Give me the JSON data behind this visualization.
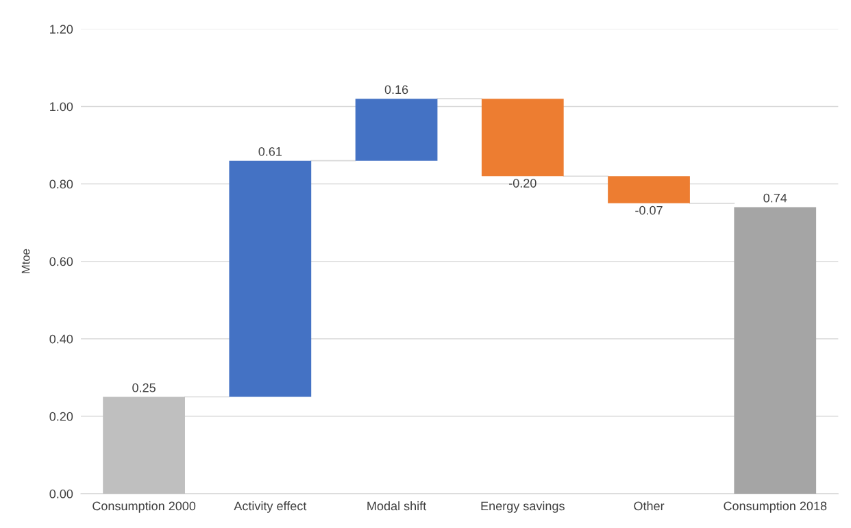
{
  "chart_data": {
    "type": "bar",
    "ylabel": "Mtoe",
    "categories": [
      "Consumption 2000",
      "Activity effect",
      "Modal shift",
      "Energy savings",
      "Other",
      "Consumption 2018"
    ],
    "values": [
      0.25,
      0.61,
      0.16,
      -0.2,
      -0.07,
      0.74
    ],
    "base": [
      0,
      0.25,
      0.86,
      1.02,
      0.82,
      0
    ],
    "colors": [
      "#bfbfbf",
      "#4472c4",
      "#4472c4",
      "#ed7d31",
      "#ed7d31",
      "#a5a5a5"
    ],
    "value_labels": [
      "0.25",
      "0.61",
      "0.16",
      "-0.20",
      "-0.07",
      "0.74"
    ],
    "ylim": [
      0,
      1.2
    ],
    "yticks": [
      {
        "value": 0,
        "label": "0.00"
      },
      {
        "value": 0.2,
        "label": "0.20"
      },
      {
        "value": 0.4,
        "label": "0.40"
      },
      {
        "value": 0.6,
        "label": "0.60"
      },
      {
        "value": 0.8,
        "label": "0.80"
      },
      {
        "value": 1.0,
        "label": "1.00"
      },
      {
        "value": 1.2,
        "label": "1.20"
      }
    ],
    "grid": "y"
  }
}
